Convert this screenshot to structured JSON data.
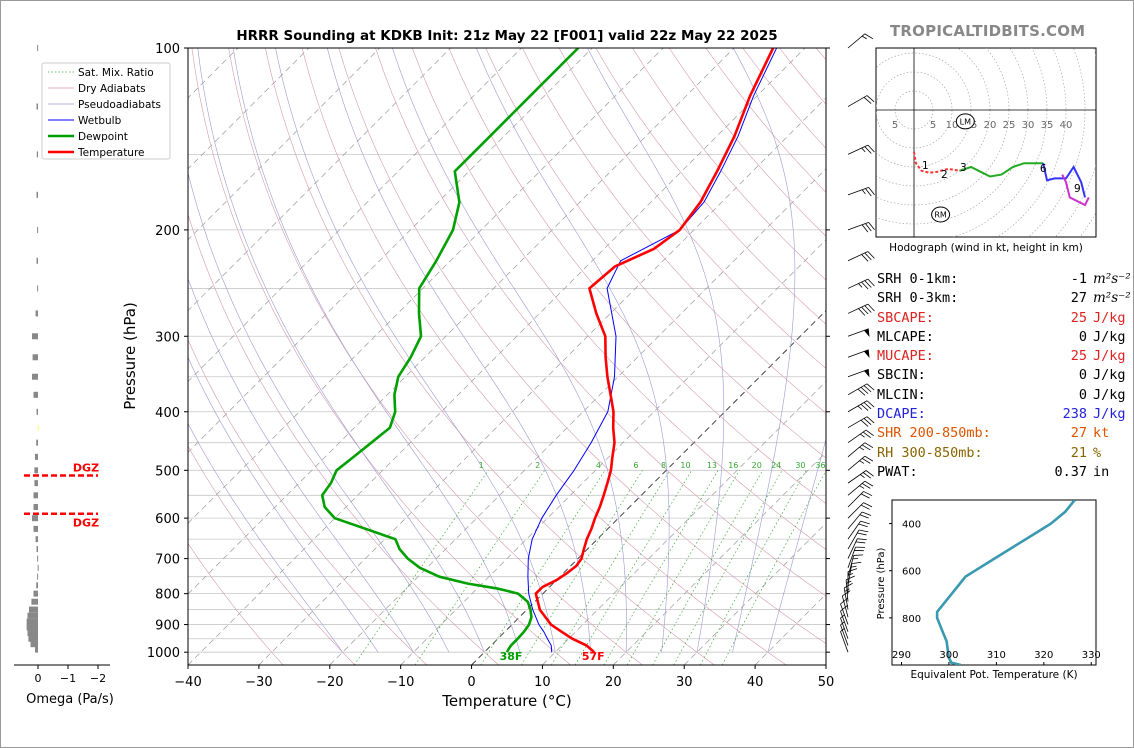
{
  "title": "HRRR Sounding at KDKB Init: 21z May 22 [F001] valid 22z May 22 2025",
  "brand": "TROPICALTIDBITS.COM",
  "colors": {
    "temperature": "#ff0000",
    "dewpoint": "#00a000",
    "wetbulb": "#0000ff",
    "hodo_green": "#00aa00",
    "hodo_blue": "#3333ff",
    "hodo_magenta": "#cc33cc",
    "theta_e": "#3a99b0",
    "dgz": "#ff0000",
    "omega_bar": "#888888"
  },
  "chart_data": [
    {
      "type": "line",
      "name": "skew-t",
      "xlabel": "Temperature (°C)",
      "ylabel": "Pressure (hPa)",
      "xlim": [
        -40,
        50
      ],
      "ylim": [
        1050,
        100
      ],
      "yscale": "log",
      "x_ticks": [
        "−40",
        "−30",
        "−20",
        "−10",
        "0",
        "10",
        "20",
        "30",
        "40",
        "50"
      ],
      "y_ticks": [
        "100",
        "200",
        "300",
        "400",
        "500",
        "600",
        "700",
        "800",
        "900",
        "1000"
      ],
      "legend": [
        "Sat. Mix. Ratio",
        "Dry Adiabats",
        "Pseudoadiabats",
        "Wetbulb",
        "Dewpoint",
        "Temperature"
      ],
      "legend_position": "top-left",
      "mixing_ratio_labels": [
        "1",
        "2",
        "4",
        "6",
        "8",
        "10",
        "13",
        "16",
        "20",
        "24",
        "30",
        "36"
      ],
      "surface_labels": {
        "temperature": "57F",
        "dewpoint": "38F"
      },
      "series": [
        {
          "name": "Temperature",
          "points": [
            [
              1000,
              15.5
            ],
            [
              975,
              13.5
            ],
            [
              950,
              10.5
            ],
            [
              925,
              8.0
            ],
            [
              900,
              5.5
            ],
            [
              850,
              1.8
            ],
            [
              800,
              -1.0
            ],
            [
              780,
              -1.0
            ],
            [
              760,
              0.0
            ],
            [
              740,
              0.5
            ],
            [
              720,
              0.8
            ],
            [
              700,
              0.5
            ],
            [
              675,
              -0.5
            ],
            [
              650,
              -1.5
            ],
            [
              625,
              -2.3
            ],
            [
              600,
              -3.3
            ],
            [
              575,
              -4.2
            ],
            [
              550,
              -5.3
            ],
            [
              525,
              -6.5
            ],
            [
              500,
              -7.8
            ],
            [
              475,
              -9.5
            ],
            [
              450,
              -11.2
            ],
            [
              425,
              -13.5
            ],
            [
              400,
              -15.7
            ],
            [
              375,
              -18.5
            ],
            [
              350,
              -21.5
            ],
            [
              325,
              -24.5
            ],
            [
              300,
              -27.5
            ],
            [
              275,
              -32.0
            ],
            [
              250,
              -36.5
            ],
            [
              230,
              -36.0
            ],
            [
              215,
              -33.0
            ],
            [
              200,
              -32.0
            ],
            [
              180,
              -33.0
            ],
            [
              160,
              -35.0
            ],
            [
              140,
              -37.5
            ],
            [
              120,
              -41.0
            ],
            [
              100,
              -44.5
            ]
          ]
        },
        {
          "name": "Dewpoint",
          "points": [
            [
              1000,
              3.2
            ],
            [
              990,
              3.0
            ],
            [
              975,
              2.8
            ],
            [
              950,
              2.8
            ],
            [
              925,
              2.7
            ],
            [
              900,
              2.4
            ],
            [
              875,
              1.7
            ],
            [
              850,
              0.5
            ],
            [
              825,
              -1.0
            ],
            [
              800,
              -3.5
            ],
            [
              785,
              -7.0
            ],
            [
              770,
              -12.0
            ],
            [
              750,
              -17.0
            ],
            [
              725,
              -21.0
            ],
            [
              700,
              -24.0
            ],
            [
              675,
              -26.5
            ],
            [
              650,
              -28.5
            ],
            [
              600,
              -40.0
            ],
            [
              575,
              -43.0
            ],
            [
              550,
              -45.0
            ],
            [
              525,
              -45.5
            ],
            [
              500,
              -46.5
            ],
            [
              475,
              -46.0
            ],
            [
              450,
              -45.5
            ],
            [
              425,
              -45.0
            ],
            [
              400,
              -46.5
            ],
            [
              375,
              -49.0
            ],
            [
              350,
              -51.0
            ],
            [
              325,
              -52.0
            ],
            [
              300,
              -53.5
            ],
            [
              275,
              -57.0
            ],
            [
              250,
              -60.5
            ],
            [
              225,
              -62.0
            ],
            [
              200,
              -64.0
            ],
            [
              180,
              -67.0
            ],
            [
              160,
              -72.0
            ],
            [
              140,
              -72.0
            ],
            [
              120,
              -72.0
            ],
            [
              100,
              -72.0
            ]
          ]
        },
        {
          "name": "Wetbulb",
          "points": [
            [
              1000,
              9.5
            ],
            [
              975,
              8.5
            ],
            [
              950,
              7.0
            ],
            [
              925,
              5.5
            ],
            [
              900,
              3.8
            ],
            [
              850,
              0.8
            ],
            [
              800,
              -2.0
            ],
            [
              750,
              -4.5
            ],
            [
              700,
              -7.0
            ],
            [
              650,
              -9.2
            ],
            [
              600,
              -10.8
            ],
            [
              550,
              -12.0
            ],
            [
              500,
              -13.0
            ],
            [
              450,
              -14.5
            ],
            [
              400,
              -16.5
            ],
            [
              350,
              -20.5
            ],
            [
              300,
              -26.0
            ],
            [
              250,
              -34.0
            ],
            [
              225,
              -36.0
            ],
            [
              200,
              -32.0
            ],
            [
              180,
              -32.5
            ],
            [
              160,
              -34.5
            ],
            [
              140,
              -37.0
            ],
            [
              120,
              -40.5
            ],
            [
              100,
              -44.0
            ]
          ]
        }
      ]
    },
    {
      "type": "line",
      "name": "hodograph",
      "caption": "Hodograph (wind in kt, height in km)",
      "ring_labels": [
        "5",
        "5",
        "10",
        "15",
        "20",
        "25",
        "30",
        "35",
        "40"
      ],
      "markers": [
        "LM",
        "RM"
      ],
      "height_labels": [
        "1",
        "2",
        "3",
        "6",
        "9"
      ],
      "series": [
        {
          "name": "0-1km",
          "color": "red",
          "points": [
            [
              0,
              -11
            ],
            [
              0.5,
              -14
            ],
            [
              2,
              -16
            ],
            [
              4,
              -16.5
            ],
            [
              6,
              -16.3
            ],
            [
              7,
              -16
            ],
            [
              9,
              -15.5
            ],
            [
              12,
              -16
            ]
          ]
        },
        {
          "name": "1-6km",
          "color": "green",
          "points": [
            [
              12,
              -16
            ],
            [
              15,
              -15
            ],
            [
              18,
              -16.5
            ],
            [
              20,
              -17.5
            ],
            [
              23,
              -17
            ],
            [
              26,
              -15
            ],
            [
              29,
              -14
            ],
            [
              31,
              -14
            ],
            [
              34,
              -14
            ]
          ]
        },
        {
          "name": "6-9km",
          "color": "blue",
          "points": [
            [
              34,
              -14
            ],
            [
              35,
              -18.5
            ],
            [
              37,
              -18
            ],
            [
              40,
              -18
            ],
            [
              42,
              -15
            ],
            [
              44,
              -19
            ],
            [
              45,
              -23
            ]
          ]
        },
        {
          "name": "9km+",
          "color": "magenta",
          "points": [
            [
              39,
              -17
            ],
            [
              40,
              -19
            ],
            [
              41,
              -23
            ],
            [
              45,
              -25
            ],
            [
              46,
              -23
            ]
          ]
        }
      ]
    },
    {
      "type": "line",
      "name": "theta-e",
      "xlabel": "Equivalent Pot. Temperature (K)",
      "ylabel": "Pressure (hPa)",
      "xlim": [
        288,
        331
      ],
      "ylim": [
        1000,
        300
      ],
      "x_ticks": [
        "290",
        "300",
        "310",
        "320",
        "330"
      ],
      "y_ticks": [
        "400",
        "600",
        "800"
      ],
      "series": [
        {
          "name": "theta-e",
          "points": [
            [
              1000,
              302.5
            ],
            [
              990,
              300.5
            ],
            [
              970,
              300
            ],
            [
              900,
              299.5
            ],
            [
              850,
              298.5
            ],
            [
              800,
              297.5
            ],
            [
              775,
              297.5
            ],
            [
              750,
              298.5
            ],
            [
              700,
              300.5
            ],
            [
              650,
              302.5
            ],
            [
              625,
              303.5
            ],
            [
              600,
              305.5
            ],
            [
              550,
              309.5
            ],
            [
              500,
              313.5
            ],
            [
              450,
              317.5
            ],
            [
              400,
              321.5
            ],
            [
              350,
              324.5
            ],
            [
              300,
              326.5
            ]
          ]
        }
      ]
    },
    {
      "type": "bar",
      "name": "omega",
      "xlabel": "Omega (Pa/s)",
      "xlim": [
        0.5,
        -2.2
      ],
      "x_ticks": [
        "0",
        "−1",
        "−2"
      ],
      "dgz_label": "DGZ",
      "dgz_pressures": [
        510,
        590
      ],
      "points": [
        [
          990,
          0.1
        ],
        [
          970,
          0.25
        ],
        [
          950,
          0.32
        ],
        [
          930,
          0.35
        ],
        [
          910,
          0.38
        ],
        [
          890,
          0.38
        ],
        [
          870,
          0.35
        ],
        [
          850,
          0.3
        ],
        [
          825,
          0.22
        ],
        [
          800,
          0.15
        ],
        [
          775,
          0.06
        ],
        [
          750,
          0.03
        ],
        [
          725,
          0.01
        ],
        [
          700,
          0.03
        ],
        [
          675,
          0.05
        ],
        [
          650,
          0.08
        ],
        [
          625,
          0.15
        ],
        [
          600,
          0.2
        ],
        [
          575,
          0.15
        ],
        [
          550,
          0.15
        ],
        [
          525,
          0.12
        ],
        [
          500,
          0.12
        ],
        [
          475,
          0.1
        ],
        [
          450,
          0.06
        ],
        [
          425,
          0.01
        ],
        [
          400,
          0.05
        ],
        [
          375,
          0.15
        ],
        [
          350,
          0.2
        ],
        [
          325,
          0.18
        ],
        [
          300,
          0.2
        ],
        [
          275,
          0.08
        ],
        [
          250,
          0.03
        ],
        [
          225,
          0.05
        ],
        [
          200,
          0.03
        ],
        [
          175,
          0.05
        ],
        [
          150,
          0.04
        ],
        [
          125,
          0.05
        ],
        [
          100,
          0.03
        ]
      ]
    }
  ],
  "params": [
    {
      "label": "SRH 0-1km:",
      "value": "-1",
      "unit": "m²s⁻²",
      "color": "#000000"
    },
    {
      "label": "SRH 0-3km:",
      "value": "27",
      "unit": "m²s⁻²",
      "color": "#000000"
    },
    {
      "label": "SBCAPE:",
      "value": "25",
      "unit": "J/kg",
      "color": "#dd2222"
    },
    {
      "label": "MLCAPE:",
      "value": "0",
      "unit": "J/kg",
      "color": "#000000"
    },
    {
      "label": "MUCAPE:",
      "value": "25",
      "unit": "J/kg",
      "color": "#dd2222"
    },
    {
      "label": "SBCIN:",
      "value": "0",
      "unit": "J/kg",
      "color": "#000000"
    },
    {
      "label": "MLCIN:",
      "value": "0",
      "unit": "J/kg",
      "color": "#000000"
    },
    {
      "label": "DCAPE:",
      "value": "238",
      "unit": "J/kg",
      "color": "#2222dd"
    },
    {
      "label": "SHR 200-850mb:",
      "value": "27",
      "unit": "kt",
      "color": "#dd5500"
    },
    {
      "label": "RH 300-850mb:",
      "value": "21",
      "unit": "%",
      "color": "#886600"
    },
    {
      "label": "PWAT:",
      "value": "0.37",
      "unit": "in",
      "color": "#000000"
    }
  ],
  "wind_barbs": [
    [
      100,
      230,
      15
    ],
    [
      125,
      240,
      20
    ],
    [
      150,
      245,
      25
    ],
    [
      175,
      250,
      25
    ],
    [
      200,
      250,
      30
    ],
    [
      225,
      245,
      30
    ],
    [
      250,
      245,
      35
    ],
    [
      275,
      245,
      40
    ],
    [
      300,
      250,
      50
    ],
    [
      325,
      250,
      50
    ],
    [
      350,
      250,
      50
    ],
    [
      375,
      240,
      40
    ],
    [
      400,
      240,
      35
    ],
    [
      425,
      240,
      30
    ],
    [
      450,
      235,
      25
    ],
    [
      475,
      230,
      25
    ],
    [
      500,
      230,
      25
    ],
    [
      525,
      235,
      25
    ],
    [
      550,
      230,
      25
    ],
    [
      575,
      225,
      20
    ],
    [
      600,
      225,
      20
    ],
    [
      625,
      220,
      20
    ],
    [
      650,
      215,
      20
    ],
    [
      675,
      210,
      20
    ],
    [
      700,
      205,
      20
    ],
    [
      725,
      200,
      20
    ],
    [
      750,
      195,
      15
    ],
    [
      775,
      190,
      15
    ],
    [
      800,
      180,
      15
    ],
    [
      825,
      175,
      15
    ],
    [
      850,
      170,
      15
    ],
    [
      875,
      165,
      10
    ],
    [
      900,
      160,
      10
    ],
    [
      925,
      160,
      10
    ],
    [
      950,
      160,
      5
    ],
    [
      975,
      160,
      5
    ],
    [
      1000,
      160,
      5
    ]
  ]
}
